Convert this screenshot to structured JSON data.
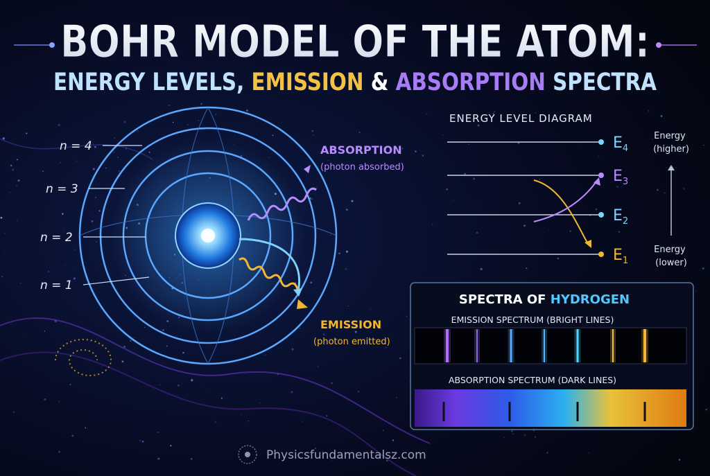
{
  "header": {
    "title": "BOHR MODEL OF THE ATOM:",
    "subtitle": [
      "ENERGY LEVELS,",
      "EMISSION",
      "&",
      "ABSORPTION",
      "SPECTRA"
    ]
  },
  "atom": {
    "orbits": [
      "n = 4",
      "n = 3",
      "n = 2",
      "n = 1"
    ],
    "absorption": {
      "label": "ABSORPTION",
      "note": "(photon absorbed)"
    },
    "emission": {
      "label": "EMISSION",
      "note": "(photon emitted)"
    }
  },
  "energy_diagram": {
    "title": "ENERGY LEVEL DIAGRAM",
    "levels": [
      {
        "symbol": "E",
        "subscript": "4"
      },
      {
        "symbol": "E",
        "subscript": "3"
      },
      {
        "symbol": "E",
        "subscript": "2"
      },
      {
        "symbol": "E",
        "subscript": "1"
      }
    ],
    "higher": [
      "Energy",
      "(higher)"
    ],
    "lower": [
      "Energy",
      "(lower)"
    ]
  },
  "spectra": {
    "title": [
      "SPECTRA OF",
      "HYDROGEN"
    ],
    "emission_label": "EMISSION SPECTRUM (BRIGHT LINES)",
    "absorption_label": "ABSORPTION SPECTRUM (DARK LINES)"
  },
  "footer": {
    "site": "Physicsfundamentalsz.com"
  }
}
